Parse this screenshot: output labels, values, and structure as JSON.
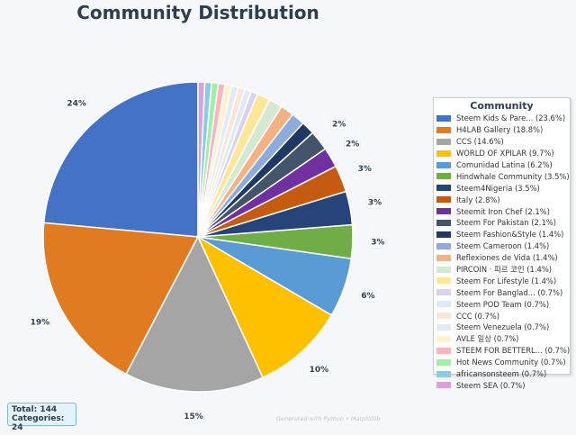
{
  "chart_data": {
    "type": "pie",
    "title": "Community Distribution",
    "legend_title": "Community",
    "legend_position": "right",
    "slices": [
      {
        "label": "Steem Kids & Pare... (23.6%)",
        "value": 23.6,
        "display": "24%",
        "color": "#4472c4"
      },
      {
        "label": "H4LAB Gallery (18.8%)",
        "value": 18.8,
        "display": "19%",
        "color": "#e07b22"
      },
      {
        "label": "CCS (14.6%)",
        "value": 14.6,
        "display": "15%",
        "color": "#a5a5a5"
      },
      {
        "label": "WORLD OF XPILAR (9.7%)",
        "value": 9.7,
        "display": "10%",
        "color": "#ffc000"
      },
      {
        "label": "Comunidad Latina (6.2%)",
        "value": 6.2,
        "display": "6%",
        "color": "#5b9bd5"
      },
      {
        "label": "Hindwhale Community (3.5%)",
        "value": 3.5,
        "display": "3%",
        "color": "#70ad47"
      },
      {
        "label": "Steem4Nigeria (3.5%)",
        "value": 3.5,
        "display": "3%",
        "color": "#264478"
      },
      {
        "label": "Italy (2.8%)",
        "value": 2.8,
        "display": "3%",
        "color": "#c55a11"
      },
      {
        "label": "Steemit Iron Chef (2.1%)",
        "value": 2.1,
        "display": "2%",
        "color": "#7030a0"
      },
      {
        "label": "Steem For Pakistan (2.1%)",
        "value": 2.1,
        "display": "2%",
        "color": "#44546a"
      },
      {
        "label": "Steem Fashion&Style (1.4%)",
        "value": 1.4,
        "display": "",
        "color": "#1f3864"
      },
      {
        "label": "Steem Cameroon (1.4%)",
        "value": 1.4,
        "display": "",
        "color": "#8faadc"
      },
      {
        "label": "Reflexiones de Vida (1.4%)",
        "value": 1.4,
        "display": "",
        "color": "#f4b183"
      },
      {
        "label": "PIRCOIN · 피르 코인 (1.4%)",
        "value": 1.4,
        "display": "",
        "color": "#d5e8d4"
      },
      {
        "label": "Steem For Lifestyle (1.4%)",
        "value": 1.4,
        "display": "",
        "color": "#ffe699"
      },
      {
        "label": "Steem For Banglad... (0.7%)",
        "value": 0.7,
        "display": "",
        "color": "#dad2ec"
      },
      {
        "label": "Steem POD Team (0.7%)",
        "value": 0.7,
        "display": "",
        "color": "#deebf7"
      },
      {
        "label": "CCC (0.7%)",
        "value": 0.7,
        "display": "",
        "color": "#fbe5d6"
      },
      {
        "label": "Steem Venezuela (0.7%)",
        "value": 0.7,
        "display": "",
        "color": "#e2eaf4"
      },
      {
        "label": "AVLE 일상 (0.7%)",
        "value": 0.7,
        "display": "",
        "color": "#fff2cc"
      },
      {
        "label": "STEEM FOR BETTERL... (0.7%)",
        "value": 0.7,
        "display": "",
        "color": "#ffb3c1"
      },
      {
        "label": "Hot News Community (0.7%)",
        "value": 0.7,
        "display": "",
        "color": "#9ef0a4"
      },
      {
        "label": "africansonsteem (0.7%)",
        "value": 0.7,
        "display": "",
        "color": "#8ecae6"
      },
      {
        "label": "Steem SEA (0.7%)",
        "value": 0.7,
        "display": "",
        "color": "#dda0dd"
      }
    ]
  },
  "stats": {
    "total_label": "Total: 144",
    "categories_label": "Categories: 24"
  },
  "footer": {
    "text": "Generated with Python • Matplotlib"
  }
}
